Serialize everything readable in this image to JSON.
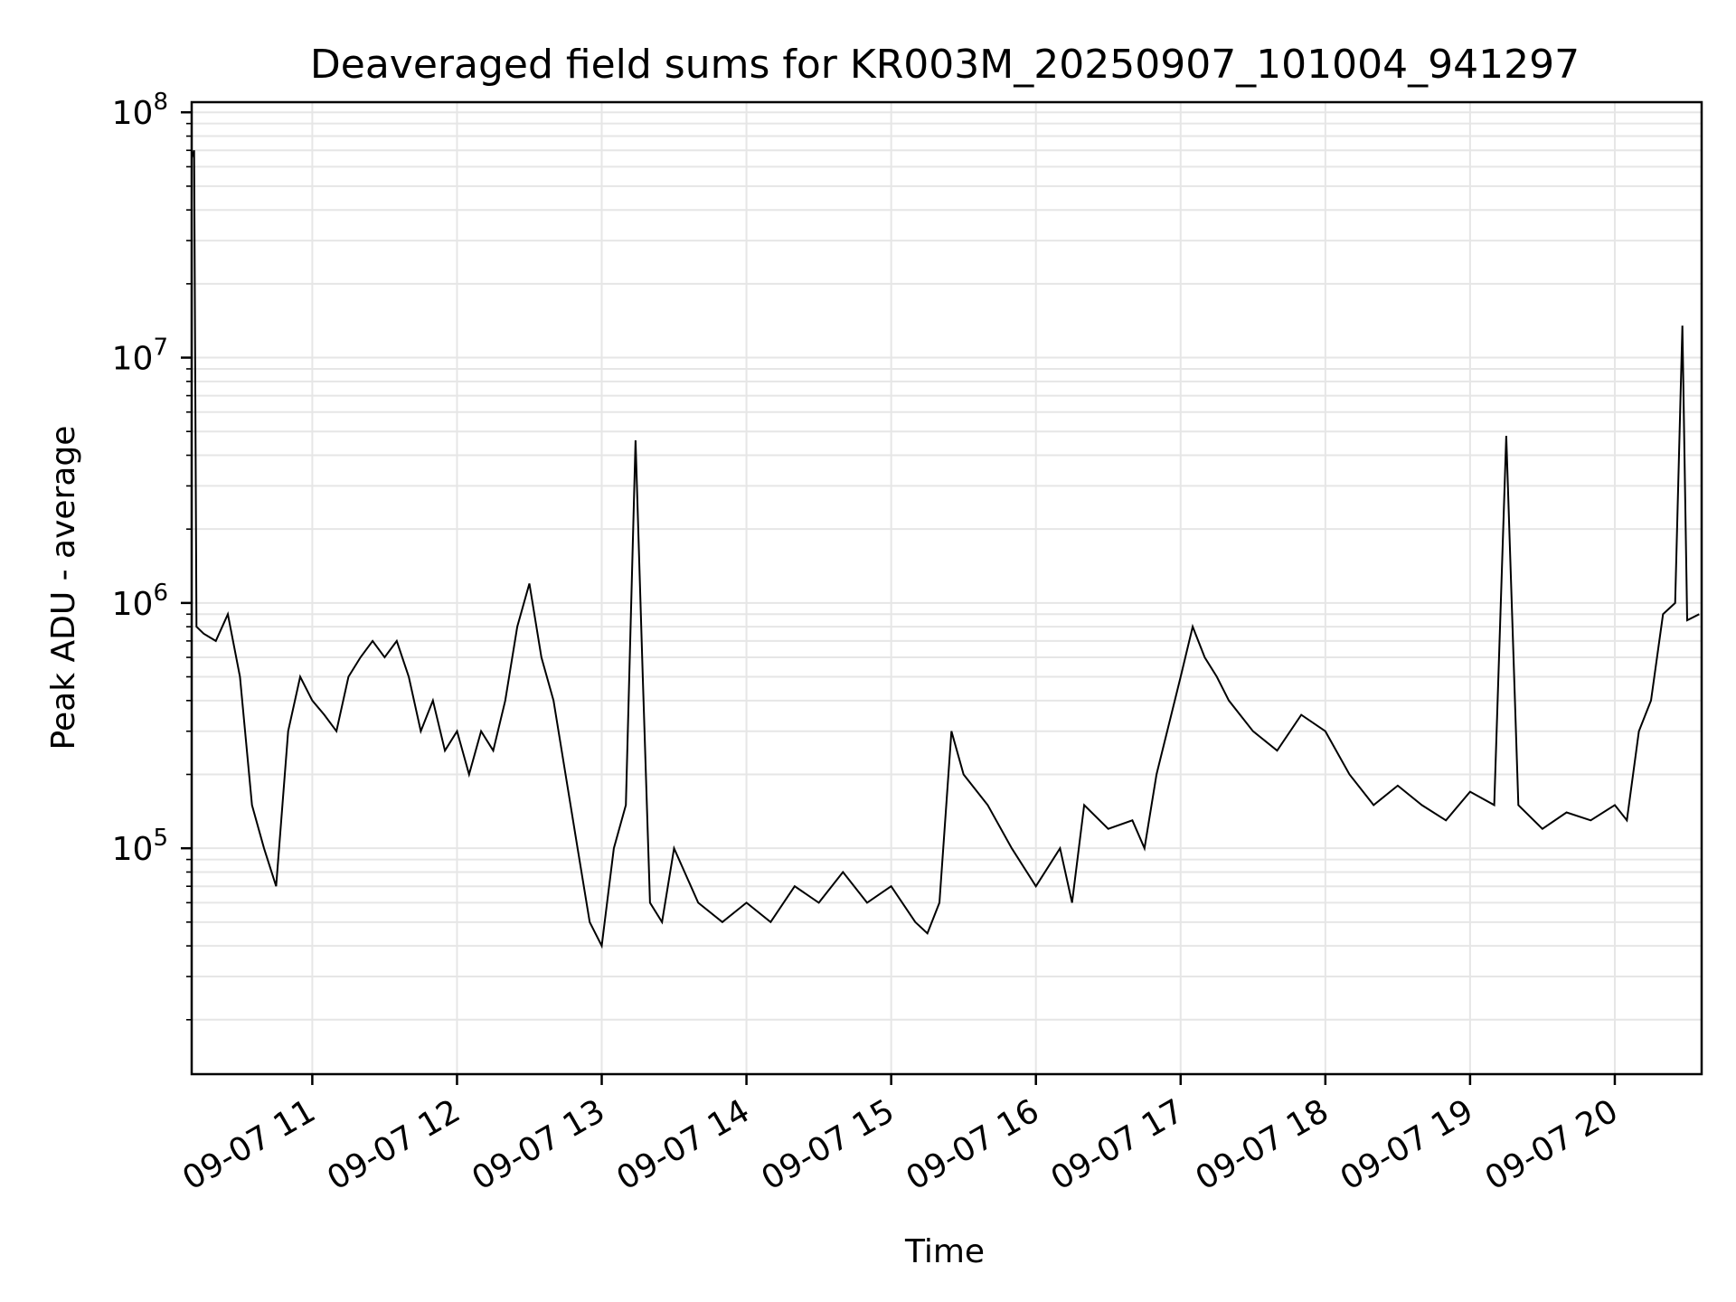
{
  "chart_data": {
    "type": "line",
    "title": "Deaveraged field sums for KR003M_20250907_101004_941297",
    "xlabel": "Time",
    "ylabel": "Peak ADU - average",
    "x_range": [
      "09-07 10:10",
      "09-07 20:36"
    ],
    "y_scale": "log",
    "ylim": [
      12000,
      110000000
    ],
    "y_ticks": [
      {
        "value": 100000,
        "base": "10",
        "exp": "5"
      },
      {
        "value": 1000000,
        "base": "10",
        "exp": "6"
      },
      {
        "value": 10000000,
        "base": "10",
        "exp": "7"
      },
      {
        "value": 100000000,
        "base": "10",
        "exp": "8"
      }
    ],
    "x_ticks": [
      "09-07 11",
      "09-07 12",
      "09-07 13",
      "09-07 14",
      "09-07 15",
      "09-07 16",
      "09-07 17",
      "09-07 18",
      "09-07 19",
      "09-07 20"
    ],
    "grid": true,
    "line_color": "#000000",
    "series": [
      {
        "x": [
          "10:10",
          "10:11",
          "10:12",
          "10:15",
          "10:20",
          "10:25",
          "10:30",
          "10:35",
          "10:40",
          "10:45",
          "10:50",
          "10:55",
          "11:00",
          "11:05",
          "11:10",
          "11:15",
          "11:20",
          "11:25",
          "11:30",
          "11:35",
          "11:40",
          "11:45",
          "11:50",
          "11:55",
          "12:00",
          "12:05",
          "12:10",
          "12:15",
          "12:20",
          "12:25",
          "12:30",
          "12:35",
          "12:40",
          "12:45",
          "12:50",
          "12:55",
          "13:00",
          "13:05",
          "13:10",
          "13:14",
          "13:17",
          "13:20",
          "13:25",
          "13:30",
          "13:40",
          "13:50",
          "14:00",
          "14:10",
          "14:20",
          "14:30",
          "14:40",
          "14:50",
          "15:00",
          "15:10",
          "15:15",
          "15:20",
          "15:25",
          "15:30",
          "15:40",
          "15:50",
          "16:00",
          "16:10",
          "16:15",
          "16:20",
          "16:30",
          "16:40",
          "16:45",
          "16:50",
          "17:00",
          "17:05",
          "17:10",
          "17:15",
          "17:20",
          "17:30",
          "17:40",
          "17:50",
          "18:00",
          "18:10",
          "18:20",
          "18:30",
          "18:40",
          "18:50",
          "19:00",
          "19:10",
          "19:15",
          "19:20",
          "19:30",
          "19:40",
          "19:50",
          "20:00",
          "20:05",
          "20:10",
          "20:15",
          "20:20",
          "20:25",
          "20:28",
          "20:30",
          "20:35"
        ],
        "y": [
          65000000,
          70000000,
          800000,
          750000,
          700000,
          900000,
          500000,
          150000,
          100000,
          70000,
          300000,
          500000,
          400000,
          350000,
          300000,
          500000,
          600000,
          700000,
          600000,
          700000,
          500000,
          300000,
          400000,
          250000,
          300000,
          200000,
          300000,
          250000,
          400000,
          800000,
          1200000,
          600000,
          400000,
          200000,
          100000,
          50000,
          40000,
          100000,
          150000,
          4600000,
          500000,
          60000,
          50000,
          100000,
          60000,
          50000,
          60000,
          50000,
          70000,
          60000,
          80000,
          60000,
          70000,
          50000,
          45000,
          60000,
          300000,
          200000,
          150000,
          100000,
          70000,
          100000,
          60000,
          150000,
          120000,
          130000,
          100000,
          200000,
          500000,
          800000,
          600000,
          500000,
          400000,
          300000,
          250000,
          350000,
          300000,
          200000,
          150000,
          180000,
          150000,
          130000,
          170000,
          150000,
          4800000,
          150000,
          120000,
          140000,
          130000,
          150000,
          130000,
          300000,
          400000,
          900000,
          1000000,
          13500000,
          850000,
          900000
        ]
      }
    ]
  }
}
